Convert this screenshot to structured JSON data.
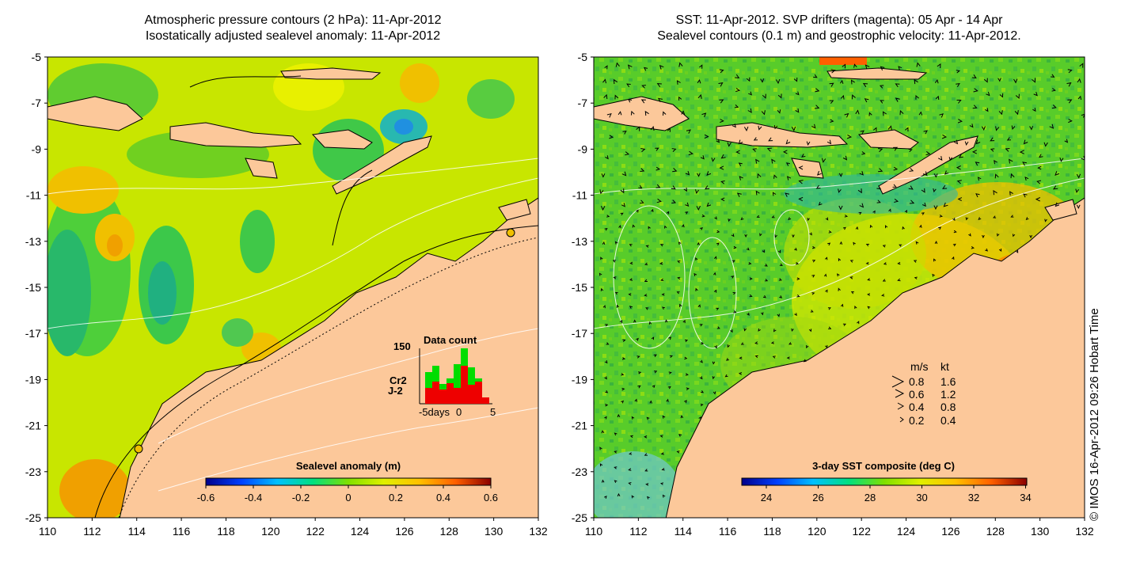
{
  "left_panel": {
    "title_line1": "Atmospheric pressure contours (2 hPa): 11-Apr-2012",
    "title_line2": "Isostatically adjusted sealevel anomaly: 11-Apr-2012",
    "colorbar": {
      "title": "Sealevel anomaly (m)",
      "ticks": [
        "-0.6",
        "-0.4",
        "-0.2",
        "0",
        "0.2",
        "0.4",
        "0.6"
      ],
      "colors": [
        "#00008b",
        "#0040ff",
        "#00c0ff",
        "#00e080",
        "#80e000",
        "#e0f000",
        "#ffc000",
        "#ff6000",
        "#8b0000"
      ]
    },
    "inset": {
      "title": "Data count",
      "y_max_label": "150",
      "series_labels": [
        "Cr2",
        "J-2"
      ],
      "series_colors": [
        "#00dd00",
        "#ee0000"
      ],
      "xlabel": "-5days",
      "x_tick_labels": [
        "0",
        "5"
      ]
    }
  },
  "right_panel": {
    "title_line1": "SST: 11-Apr-2012. SVP drifters (magenta): 05 Apr - 14 Apr",
    "title_line2": "Sealevel contours (0.1 m) and geostrophic velocity: 11-Apr-2012.",
    "colorbar": {
      "title": "3-day SST composite (deg C)",
      "ticks": [
        "24",
        "26",
        "28",
        "30",
        "32",
        "34"
      ],
      "colors": [
        "#00008b",
        "#0040ff",
        "#00c0ff",
        "#00e080",
        "#80e000",
        "#e0f000",
        "#ffc000",
        "#ff6000",
        "#8b0000"
      ]
    },
    "speed_legend": {
      "header_ms": "m/s",
      "header_kt": "kt",
      "rows": [
        {
          "ms": "0.8",
          "kt": "1.6"
        },
        {
          "ms": "0.6",
          "kt": "1.2"
        },
        {
          "ms": "0.4",
          "kt": "0.8"
        },
        {
          "ms": "0.2",
          "kt": "0.4"
        }
      ]
    }
  },
  "axes": {
    "lon_ticks": [
      "110",
      "112",
      "114",
      "116",
      "118",
      "120",
      "122",
      "124",
      "126",
      "128",
      "130",
      "132"
    ],
    "lat_ticks": [
      "-5",
      "-7",
      "-9",
      "-11",
      "-13",
      "-15",
      "-17",
      "-19",
      "-21",
      "-23",
      "-25"
    ]
  },
  "credit": "© IMOS 16-Apr-2012 09:26 Hobart Time",
  "colors": {
    "land": "#fcc89a",
    "sea_left": "#c8e600",
    "sea_right": "#58cc2a"
  }
}
